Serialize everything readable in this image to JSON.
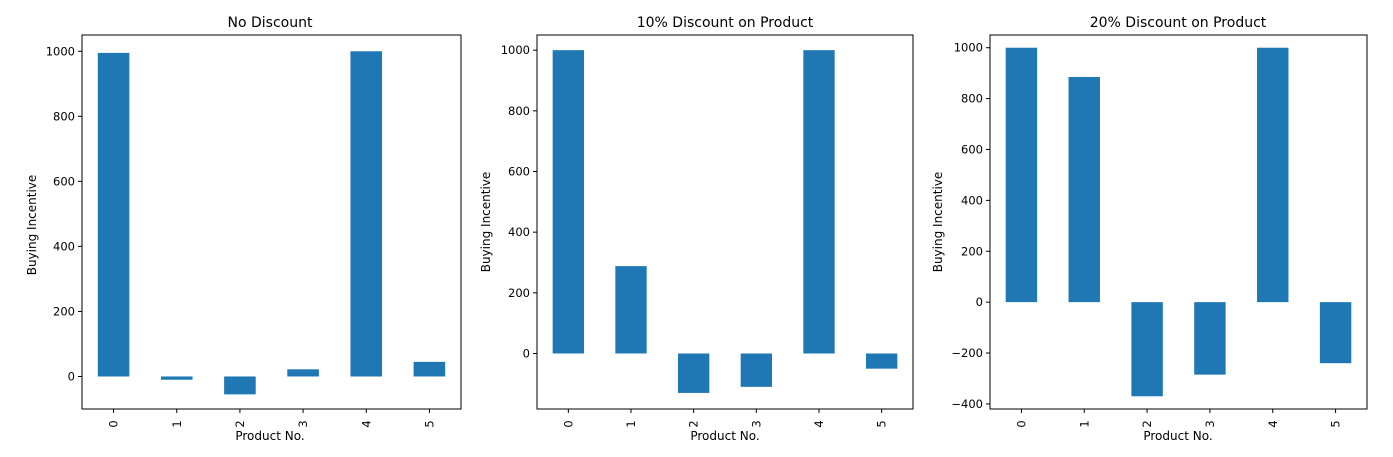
{
  "figure": {
    "bar_color": "#1f77b4"
  },
  "chart_data": [
    {
      "type": "bar",
      "title": "No Discount",
      "xlabel": "Product No.",
      "ylabel": "Buying Incentive",
      "categories": [
        "0",
        "1",
        "2",
        "3",
        "4",
        "5"
      ],
      "values": [
        995,
        -10,
        -55,
        22,
        1000,
        45
      ],
      "ylim": [
        -100,
        1050
      ],
      "yticks": [
        0,
        200,
        400,
        600,
        800,
        1000
      ],
      "grid": false
    },
    {
      "type": "bar",
      "title": "10% Discount on Product",
      "xlabel": "Product No.",
      "ylabel": "Buying Incentive",
      "categories": [
        "0",
        "1",
        "2",
        "3",
        "4",
        "5"
      ],
      "values": [
        1000,
        288,
        -130,
        -110,
        1000,
        -50
      ],
      "ylim": [
        -183,
        1050
      ],
      "yticks": [
        0,
        200,
        400,
        600,
        800,
        1000
      ],
      "grid": false
    },
    {
      "type": "bar",
      "title": "20% Discount on Product",
      "xlabel": "Product No.",
      "ylabel": "Buying Incentive",
      "categories": [
        "0",
        "1",
        "2",
        "3",
        "4",
        "5"
      ],
      "values": [
        1000,
        885,
        -370,
        -285,
        1000,
        -240
      ],
      "ylim": [
        -420,
        1050
      ],
      "yticks": [
        -400,
        -200,
        0,
        200,
        400,
        600,
        800,
        1000
      ],
      "grid": false
    }
  ]
}
